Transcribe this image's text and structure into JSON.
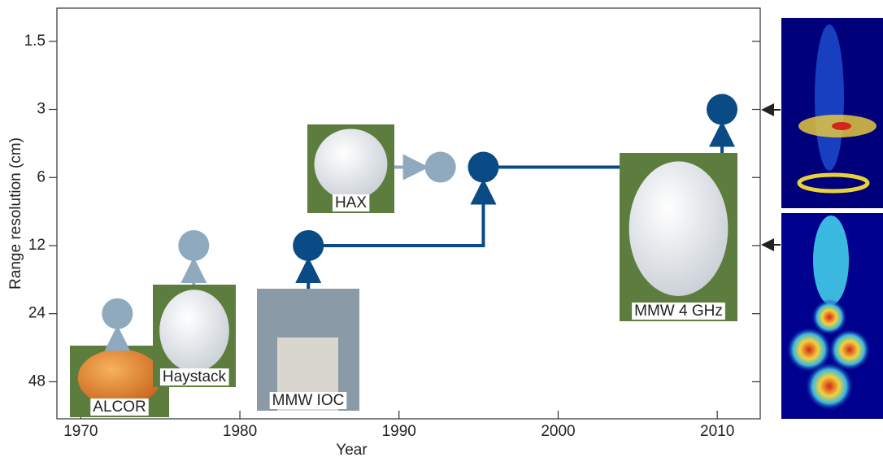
{
  "chart_data": {
    "type": "scatter",
    "x_label": "Year",
    "y_label": "Range resolution (cm)",
    "xlim": [
      1968.5,
      2012.7
    ],
    "xticks": [
      1970,
      1980,
      1990,
      2000,
      2010
    ],
    "ylim": [
      1.07,
      70
    ],
    "yticks": [
      1.5,
      3,
      6,
      12,
      24,
      48
    ],
    "log_scale": true,
    "y_inverted": true,
    "points": [
      {
        "label": "ALCOR",
        "x": 1972.3,
        "y": 24,
        "color": "#8fa9bf"
      },
      {
        "label": "Haystack",
        "x": 1977.1,
        "y": 12,
        "color": "#8fa9bf"
      },
      {
        "label": "MMW IOC",
        "x": 1984.3,
        "y": 12,
        "color": "#0a4a85"
      },
      {
        "label": "HAX",
        "x": 1992.6,
        "y": 5.4,
        "color": "#8fa9bf"
      },
      {
        "x": 1995.3,
        "y": 5.4,
        "color": "#0a4a85"
      },
      {
        "label": "MMW 4 GHz",
        "x": 2010.3,
        "y": 3,
        "color": "#0a4a85"
      }
    ]
  }
}
